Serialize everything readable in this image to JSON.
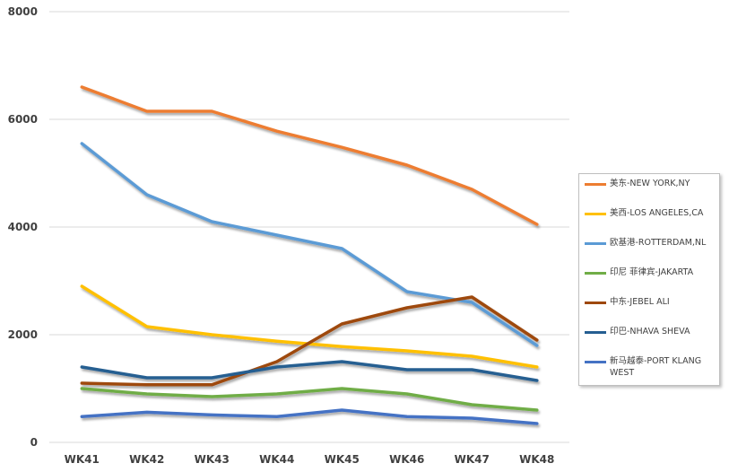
{
  "chart_data": {
    "type": "line",
    "title": "",
    "xlabel": "",
    "ylabel": "",
    "categories": [
      "WK41",
      "WK42",
      "WK43",
      "WK44",
      "WK45",
      "WK46",
      "WK47",
      "WK48"
    ],
    "ylim": [
      0,
      8000
    ],
    "yticks": [
      "0",
      "2000",
      "4000",
      "6000",
      "8000"
    ],
    "grid": true,
    "legend_position": "right",
    "series": [
      {
        "name": "美东-NEW YORK,NY",
        "color": "#ed7d31",
        "values": [
          6600,
          6150,
          6150,
          5780,
          5480,
          5150,
          4700,
          4050
        ]
      },
      {
        "name": "美西-LOS ANGELES,CA",
        "color": "#ffc000",
        "values": [
          2900,
          2150,
          2000,
          1880,
          1780,
          1700,
          1600,
          1400
        ]
      },
      {
        "name": "欧基港-ROTTERDAM,NL",
        "color": "#5b9bd5",
        "values": [
          5550,
          4600,
          4100,
          3850,
          3600,
          2800,
          2600,
          1800
        ]
      },
      {
        "name": "印尼 菲律宾-JAKARTA",
        "color": "#70ad47",
        "values": [
          1000,
          900,
          850,
          900,
          1000,
          900,
          700,
          600
        ]
      },
      {
        "name": "中东-JEBEL ALI",
        "color": "#9e480e",
        "values": [
          1100,
          1070,
          1070,
          1500,
          2200,
          2500,
          2700,
          1900
        ]
      },
      {
        "name": "印巴-NHAVA SHEVA",
        "color": "#255e91",
        "values": [
          1400,
          1200,
          1200,
          1400,
          1500,
          1350,
          1350,
          1150
        ]
      },
      {
        "name": "新马越泰-PORT KLANG WEST",
        "color": "#4472c4",
        "values": [
          480,
          560,
          510,
          480,
          600,
          480,
          450,
          350
        ]
      }
    ]
  }
}
